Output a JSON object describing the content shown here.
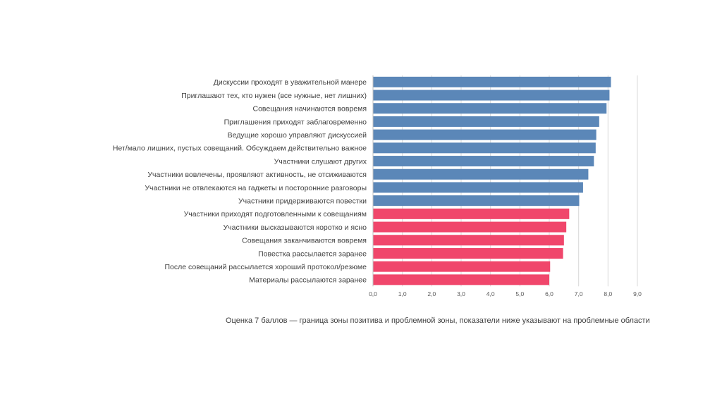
{
  "chart_data": {
    "type": "bar",
    "orientation": "horizontal",
    "categories": [
      "Дискуссии проходят в уважительной манере",
      "Приглашают тех, кто нужен (все нужные, нет лишних)",
      "Совещания начинаются вовремя",
      "Приглашения приходят заблаговременно",
      "Ведущие хорошо управляют дискуссией",
      "Нет/мало лишних, пустых совещаний. Обсуждаем действительно важное",
      "Участники слушают других",
      "Участники вовлечены, проявляют активность, не отсиживаются",
      "Участники не отвлекаются на гаджеты и посторонние разговоры",
      "Участники придерживаются повестки",
      "Участники приходят подготовленными к совещаниям",
      "Участники высказываются коротко и ясно",
      "Совещания заканчиваются вовремя",
      "Повестка рассылается заранее",
      "После совещаний рассылается хороший протокол/резюме",
      "Материалы рассылаются заранее"
    ],
    "values": [
      8.1,
      8.05,
      7.95,
      7.7,
      7.6,
      7.58,
      7.52,
      7.33,
      7.15,
      7.02,
      6.68,
      6.58,
      6.5,
      6.47,
      6.03,
      6.0
    ],
    "colors": [
      "#5b87b8",
      "#5b87b8",
      "#5b87b8",
      "#5b87b8",
      "#5b87b8",
      "#5b87b8",
      "#5b87b8",
      "#5b87b8",
      "#5b87b8",
      "#5b87b8",
      "#f0466b",
      "#f0466b",
      "#f0466b",
      "#f0466b",
      "#f0466b",
      "#f0466b"
    ],
    "xlim": [
      0,
      9
    ],
    "xticks": [
      0,
      1,
      2,
      3,
      4,
      5,
      6,
      7,
      8,
      9
    ],
    "xtick_labels": [
      "0,0",
      "1,0",
      "2,0",
      "3,0",
      "4,0",
      "5,0",
      "6,0",
      "7,0",
      "8,0",
      "9,0"
    ],
    "grid": true,
    "title": "",
    "xlabel": "",
    "ylabel": ""
  },
  "note": "Оценка 7 баллов — граница зоны позитива и проблемной зоны, показатели ниже указывают на проблемные области"
}
